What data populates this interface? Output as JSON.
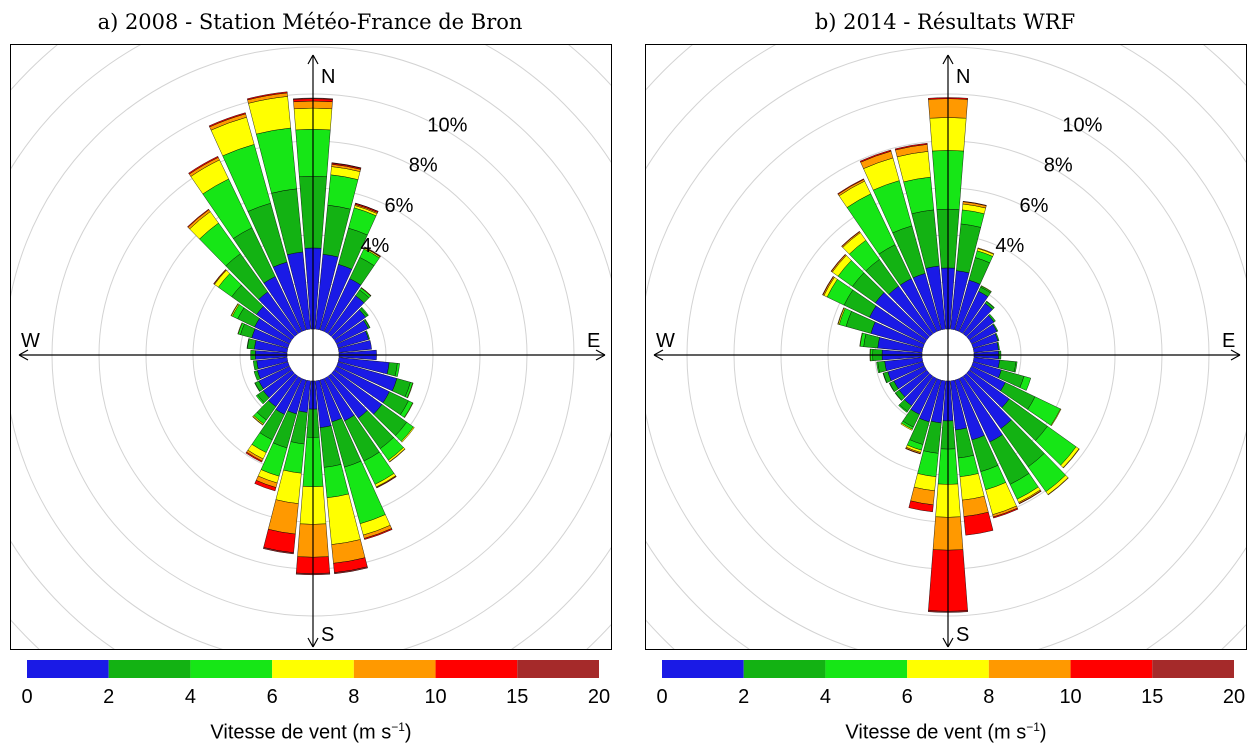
{
  "colors": {
    "bins": [
      "#1a1ae6",
      "#13b213",
      "#16e616",
      "#ffff00",
      "#ff9900",
      "#ff0000",
      "#a52a2a"
    ],
    "grid": "#d3d3d3",
    "axis": "#000000"
  },
  "colorbar": {
    "ticks": [
      "0",
      "2",
      "4",
      "6",
      "8",
      "10",
      "15",
      "20"
    ],
    "label_text": "Vitesse de vent (m s",
    "label_sup": "−1",
    "label_close": ")"
  },
  "chart_data": [
    {
      "type": "windrose",
      "title": "a) 2008 - Station Météo-France de Bron",
      "direction_labels": {
        "north": "N",
        "south": "S",
        "east": "E",
        "west": "W"
      },
      "radial_unit": "%",
      "radial_ticks": [
        {
          "value": 4,
          "label": "4%"
        },
        {
          "value": 6,
          "label": "6%"
        },
        {
          "value": 8,
          "label": "8%"
        },
        {
          "value": 10,
          "label": "10%"
        }
      ],
      "radial_max": 12,
      "speed_bins": [
        "0-2",
        "2-4",
        "4-6",
        "6-8",
        "8-10",
        "10-15",
        "15-20"
      ],
      "sector_width_deg": 10,
      "sectors": [
        {
          "dir": 0,
          "values": [
            3.45,
            3.05,
            2.0,
            0.9,
            0.3,
            0.1,
            0.03
          ]
        },
        {
          "dir": 10,
          "values": [
            3.2,
            2.1,
            1.3,
            0.35,
            0.1,
            0.05,
            0.02
          ]
        },
        {
          "dir": 20,
          "values": [
            2.9,
            1.6,
            0.9,
            0.1,
            0.05,
            0.05,
            0.01
          ]
        },
        {
          "dir": 30,
          "values": [
            2.5,
            1.0,
            0.4,
            0.05,
            0.02,
            0.02,
            0.0
          ]
        },
        {
          "dir": 40,
          "values": [
            2.0,
            0.3,
            0.1,
            0.02,
            0.01,
            0.0,
            0.0
          ]
        },
        {
          "dir": 50,
          "values": [
            1.65,
            0.1,
            0.05,
            0.0,
            0.0,
            0.0,
            0.0
          ]
        },
        {
          "dir": 60,
          "values": [
            1.5,
            0.07,
            0.02,
            0.0,
            0.0,
            0.0,
            0.0
          ]
        },
        {
          "dir": 70,
          "values": [
            1.35,
            0.05,
            0.0,
            0.0,
            0.0,
            0.0,
            0.0
          ]
        },
        {
          "dir": 80,
          "values": [
            1.4,
            0.0,
            0.0,
            0.0,
            0.0,
            0.0,
            0.0
          ]
        },
        {
          "dir": 90,
          "values": [
            1.6,
            0.0,
            0.0,
            0.0,
            0.0,
            0.0,
            0.0
          ]
        },
        {
          "dir": 100,
          "values": [
            2.15,
            0.35,
            0.1,
            0.0,
            0.0,
            0.0,
            0.0
          ]
        },
        {
          "dir": 110,
          "values": [
            2.6,
            0.6,
            0.1,
            0.02,
            0.0,
            0.0,
            0.0
          ]
        },
        {
          "dir": 120,
          "values": [
            2.5,
            0.9,
            0.2,
            0.02,
            0.0,
            0.0,
            0.0
          ]
        },
        {
          "dir": 130,
          "values": [
            2.5,
            1.3,
            0.35,
            0.05,
            0.0,
            0.0,
            0.0
          ]
        },
        {
          "dir": 140,
          "values": [
            2.2,
            1.6,
            0.6,
            0.08,
            0.02,
            0.0,
            0.0
          ]
        },
        {
          "dir": 150,
          "values": [
            2.0,
            1.9,
            1.1,
            0.12,
            0.03,
            0.02,
            0.0
          ]
        },
        {
          "dir": 160,
          "values": [
            1.85,
            2.0,
            2.5,
            0.5,
            0.15,
            0.05,
            0.0
          ]
        },
        {
          "dir": 170,
          "values": [
            2.0,
            1.7,
            1.3,
            2.0,
            0.8,
            0.4,
            0.05
          ]
        },
        {
          "dir": 180,
          "values": [
            1.2,
            1.2,
            2.1,
            1.6,
            1.4,
            0.7,
            0.05
          ]
        },
        {
          "dir": 190,
          "values": [
            1.35,
            1.35,
            1.25,
            1.3,
            1.3,
            0.8,
            0.05
          ]
        },
        {
          "dir": 200,
          "values": [
            1.5,
            1.5,
            1.25,
            0.3,
            0.2,
            0.15,
            0.0
          ]
        },
        {
          "dir": 210,
          "values": [
            1.7,
            1.2,
            0.6,
            0.3,
            0.1,
            0.05,
            0.0
          ]
        },
        {
          "dir": 220,
          "values": [
            1.6,
            0.7,
            0.2,
            0.05,
            0.02,
            0.0,
            0.0
          ]
        },
        {
          "dir": 230,
          "values": [
            1.5,
            0.3,
            0.07,
            0.0,
            0.0,
            0.0,
            0.0
          ]
        },
        {
          "dir": 240,
          "values": [
            1.45,
            0.18,
            0.02,
            0.0,
            0.0,
            0.0,
            0.0
          ]
        },
        {
          "dir": 250,
          "values": [
            1.35,
            0.15,
            0.0,
            0.0,
            0.0,
            0.0,
            0.0
          ]
        },
        {
          "dir": 260,
          "values": [
            1.3,
            0.15,
            0.0,
            0.0,
            0.0,
            0.0,
            0.0
          ]
        },
        {
          "dir": 270,
          "values": [
            1.35,
            0.2,
            0.0,
            0.0,
            0.0,
            0.0,
            0.0
          ]
        },
        {
          "dir": 280,
          "values": [
            1.4,
            0.3,
            0.02,
            0.0,
            0.0,
            0.0,
            0.0
          ]
        },
        {
          "dir": 290,
          "values": [
            1.6,
            0.5,
            0.1,
            0.02,
            0.0,
            0.0,
            0.0
          ]
        },
        {
          "dir": 300,
          "values": [
            1.65,
            0.8,
            0.25,
            0.05,
            0.02,
            0.0,
            0.0
          ]
        },
        {
          "dir": 310,
          "values": [
            1.85,
            1.3,
            0.7,
            0.2,
            0.03,
            0.02,
            0.0
          ]
        },
        {
          "dir": 320,
          "values": [
            2.2,
            2.0,
            1.6,
            0.6,
            0.1,
            0.03,
            0.0
          ]
        },
        {
          "dir": 330,
          "values": [
            2.6,
            2.3,
            2.3,
            0.9,
            0.12,
            0.05,
            0.0
          ]
        },
        {
          "dir": 340,
          "values": [
            3.0,
            2.6,
            2.6,
            1.2,
            0.15,
            0.05,
            0.0
          ]
        },
        {
          "dir": 350,
          "values": [
            3.3,
            2.7,
            2.6,
            1.35,
            0.15,
            0.05,
            0.0
          ]
        }
      ]
    },
    {
      "type": "windrose",
      "title": "b) 2014 - Résultats WRF",
      "direction_labels": {
        "north": "N",
        "south": "S",
        "east": "E",
        "west": "W"
      },
      "radial_unit": "%",
      "radial_ticks": [
        {
          "value": 4,
          "label": "4%"
        },
        {
          "value": 6,
          "label": "6%"
        },
        {
          "value": 8,
          "label": "8%"
        },
        {
          "value": 10,
          "label": "10%"
        }
      ],
      "radial_max": 12,
      "speed_bins": [
        "0-2",
        "2-4",
        "4-6",
        "6-8",
        "8-10",
        "10-15",
        "15-20"
      ],
      "sector_width_deg": 10,
      "sectors": [
        {
          "dir": 0,
          "values": [
            2.6,
            2.5,
            2.5,
            1.4,
            0.8,
            0.05,
            0.0
          ]
        },
        {
          "dir": 10,
          "values": [
            2.5,
            2.0,
            0.6,
            0.25,
            0.1,
            0.02,
            0.0
          ]
        },
        {
          "dir": 20,
          "values": [
            2.2,
            1.0,
            0.3,
            0.1,
            0.03,
            0.0,
            0.0
          ]
        },
        {
          "dir": 30,
          "values": [
            1.9,
            0.2,
            0.05,
            0.02,
            0.0,
            0.0,
            0.0
          ]
        },
        {
          "dir": 40,
          "values": [
            1.6,
            0.1,
            0.02,
            0.0,
            0.0,
            0.0,
            0.0
          ]
        },
        {
          "dir": 50,
          "values": [
            1.3,
            0.08,
            0.0,
            0.0,
            0.0,
            0.0,
            0.0
          ]
        },
        {
          "dir": 60,
          "values": [
            1.2,
            0.05,
            0.0,
            0.0,
            0.0,
            0.0,
            0.0
          ]
        },
        {
          "dir": 70,
          "values": [
            1.1,
            0.05,
            0.0,
            0.0,
            0.0,
            0.0,
            0.0
          ]
        },
        {
          "dir": 80,
          "values": [
            1.05,
            0.05,
            0.0,
            0.0,
            0.0,
            0.0,
            0.0
          ]
        },
        {
          "dir": 90,
          "values": [
            1.05,
            0.1,
            0.0,
            0.0,
            0.0,
            0.0,
            0.0
          ]
        },
        {
          "dir": 100,
          "values": [
            1.1,
            0.7,
            0.05,
            0.0,
            0.0,
            0.0,
            0.0
          ]
        },
        {
          "dir": 110,
          "values": [
            1.25,
            1.0,
            0.3,
            0.0,
            0.0,
            0.0,
            0.0
          ]
        },
        {
          "dir": 120,
          "values": [
            1.6,
            1.4,
            1.2,
            0.03,
            0.0,
            0.0,
            0.0
          ]
        },
        {
          "dir": 130,
          "values": [
            2.1,
            2.0,
            1.5,
            0.15,
            0.02,
            0.0,
            0.0
          ]
        },
        {
          "dir": 140,
          "values": [
            2.75,
            2.0,
            1.3,
            0.15,
            0.02,
            0.0,
            0.0
          ]
        },
        {
          "dir": 150,
          "values": [
            3.0,
            2.0,
            0.7,
            0.15,
            0.05,
            0.02,
            0.0
          ]
        },
        {
          "dir": 160,
          "values": [
            2.65,
            1.4,
            0.8,
            1.1,
            0.1,
            0.05,
            0.0
          ]
        },
        {
          "dir": 170,
          "values": [
            2.1,
            1.2,
            0.8,
            1.0,
            0.7,
            0.8,
            0.0
          ]
        },
        {
          "dir": 180,
          "values": [
            1.7,
            1.2,
            1.5,
            1.4,
            1.4,
            2.6,
            0.05
          ]
        },
        {
          "dir": 190,
          "values": [
            1.8,
            1.3,
            1.0,
            0.6,
            0.6,
            0.3,
            0.0
          ]
        },
        {
          "dir": 200,
          "values": [
            1.85,
            1.0,
            0.25,
            0.1,
            0.05,
            0.02,
            0.0
          ]
        },
        {
          "dir": 210,
          "values": [
            1.7,
            0.6,
            0.1,
            0.05,
            0.0,
            0.0,
            0.0
          ]
        },
        {
          "dir": 220,
          "values": [
            1.55,
            0.3,
            0.05,
            0.0,
            0.0,
            0.0,
            0.0
          ]
        },
        {
          "dir": 230,
          "values": [
            1.45,
            0.2,
            0.02,
            0.0,
            0.0,
            0.0,
            0.0
          ]
        },
        {
          "dir": 240,
          "values": [
            1.45,
            0.2,
            0.02,
            0.0,
            0.0,
            0.0,
            0.0
          ]
        },
        {
          "dir": 250,
          "values": [
            1.55,
            0.2,
            0.02,
            0.0,
            0.0,
            0.0,
            0.0
          ]
        },
        {
          "dir": 260,
          "values": [
            1.6,
            0.3,
            0.05,
            0.0,
            0.0,
            0.0,
            0.0
          ]
        },
        {
          "dir": 270,
          "values": [
            1.7,
            0.4,
            0.1,
            0.02,
            0.0,
            0.0,
            0.0
          ]
        },
        {
          "dir": 280,
          "values": [
            1.9,
            0.6,
            0.15,
            0.02,
            0.0,
            0.0,
            0.0
          ]
        },
        {
          "dir": 290,
          "values": [
            2.3,
            1.1,
            0.3,
            0.05,
            0.02,
            0.0,
            0.0
          ]
        },
        {
          "dir": 300,
          "values": [
            2.6,
            1.2,
            0.8,
            0.15,
            0.05,
            0.02,
            0.0
          ]
        },
        {
          "dir": 310,
          "values": [
            2.7,
            1.2,
            0.75,
            0.3,
            0.05,
            0.02,
            0.0
          ]
        },
        {
          "dir": 320,
          "values": [
            2.5,
            1.4,
            1.0,
            0.4,
            0.05,
            0.02,
            0.0
          ]
        },
        {
          "dir": 330,
          "values": [
            2.5,
            1.6,
            2.4,
            0.6,
            0.08,
            0.03,
            0.0
          ]
        },
        {
          "dir": 340,
          "values": [
            2.5,
            2.1,
            2.0,
            1.0,
            0.3,
            0.05,
            0.0
          ]
        },
        {
          "dir": 350,
          "values": [
            2.7,
            2.4,
            1.4,
            1.1,
            0.3,
            0.05,
            0.0
          ]
        }
      ]
    }
  ]
}
